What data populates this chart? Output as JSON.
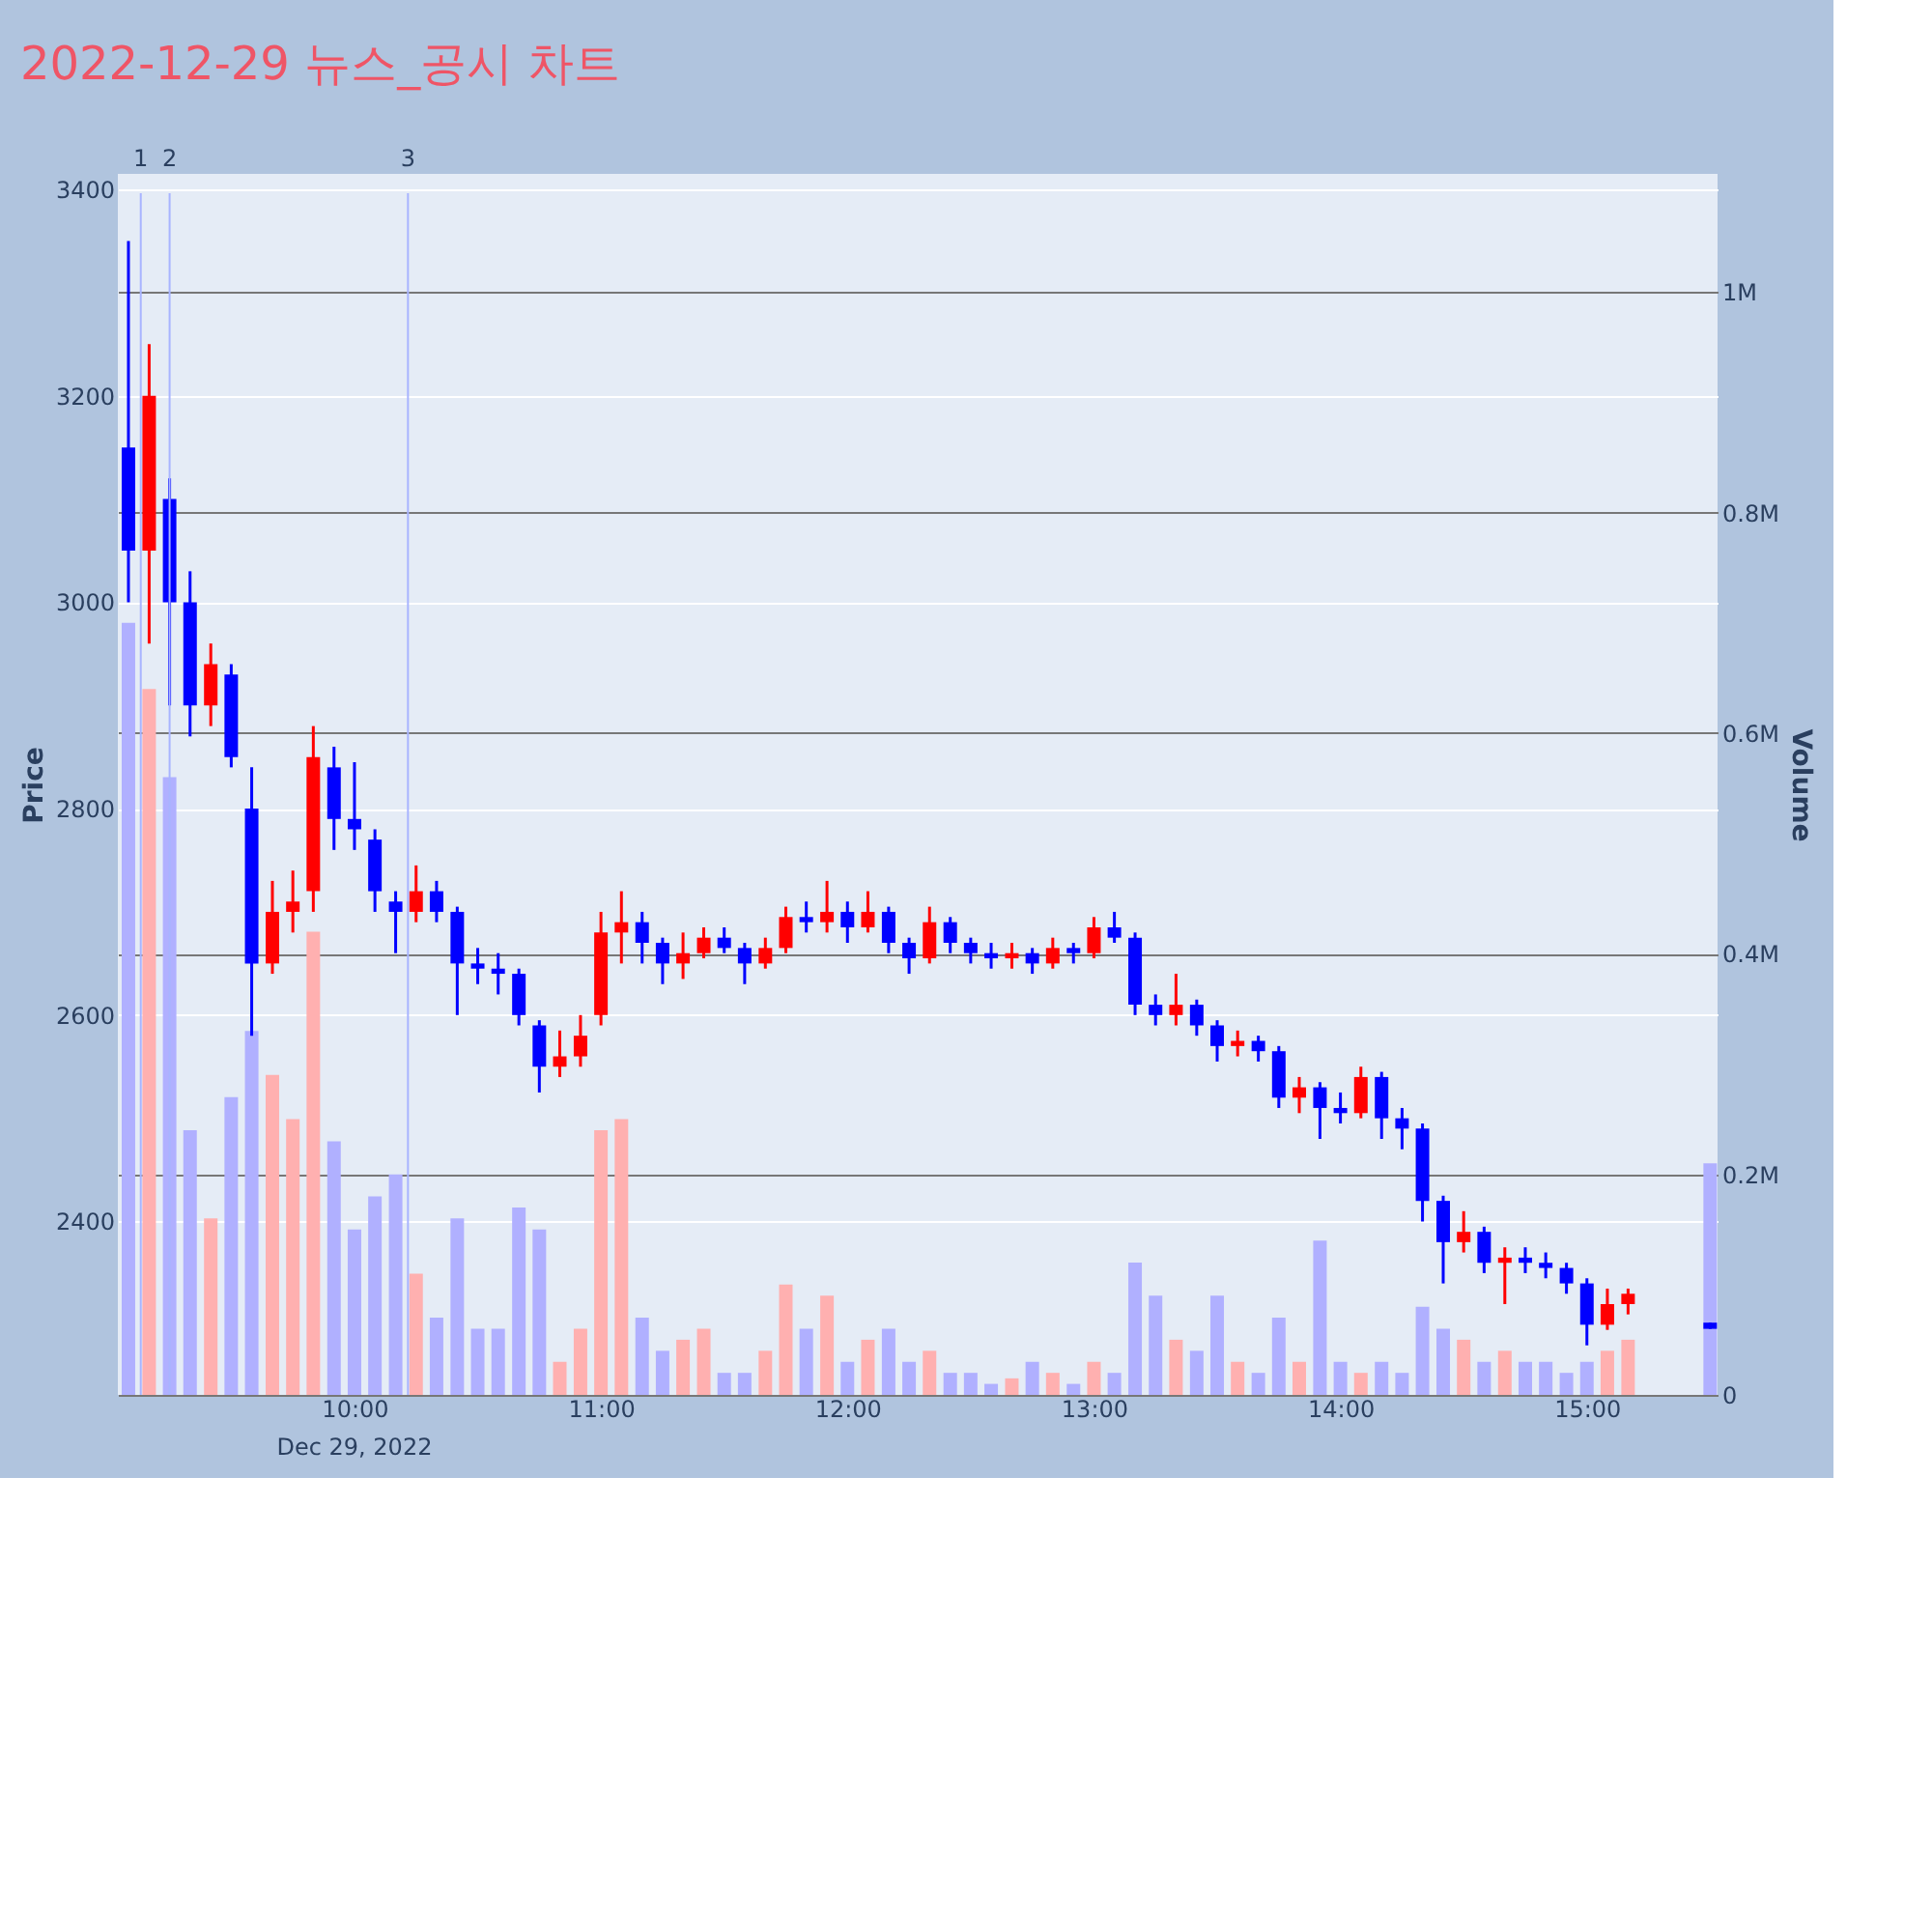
{
  "chart_data": {
    "type": "candlestick",
    "title": "2022-12-29 뉴스_공시 차트",
    "ylabel": "Price",
    "y2label": "Volume",
    "annotations": [
      "Dec 29, 2022",
      "1",
      "2",
      "3"
    ],
    "x": [
      9.083,
      9.167,
      9.25,
      9.333,
      9.417,
      9.5,
      9.583,
      9.667,
      9.75,
      9.833,
      9.917,
      10,
      10.083,
      10.167,
      10.25,
      10.333,
      10.417,
      10.5,
      10.583,
      10.667,
      10.75,
      10.833,
      10.917,
      11,
      11.083,
      11.167,
      11.25,
      11.333,
      11.417,
      11.5,
      11.583,
      11.667,
      11.75,
      11.833,
      11.917,
      12,
      12.083,
      12.167,
      12.25,
      12.333,
      12.417,
      12.5,
      12.583,
      12.667,
      12.75,
      12.833,
      12.917,
      13,
      13.083,
      13.167,
      13.25,
      13.333,
      13.417,
      13.5,
      13.583,
      13.667,
      13.75,
      13.833,
      13.917,
      14,
      14.083,
      14.167,
      14.25,
      14.333,
      14.417,
      14.5,
      14.583,
      14.667,
      14.75,
      14.833,
      14.917,
      15,
      15.083,
      15.167,
      15.5
    ],
    "ohlc": [
      [
        3150,
        3350,
        3000,
        3050
      ],
      [
        3050,
        3250,
        2960,
        3200
      ],
      [
        3100,
        3120,
        2900,
        3000
      ],
      [
        3000,
        3030,
        2870,
        2900
      ],
      [
        2900,
        2960,
        2880,
        2940
      ],
      [
        2930,
        2940,
        2840,
        2850
      ],
      [
        2800,
        2840,
        2580,
        2650
      ],
      [
        2650,
        2730,
        2640,
        2700
      ],
      [
        2700,
        2740,
        2680,
        2710
      ],
      [
        2720,
        2880,
        2700,
        2850
      ],
      [
        2840,
        2860,
        2760,
        2790
      ],
      [
        2790,
        2845,
        2760,
        2780
      ],
      [
        2770,
        2780,
        2700,
        2720
      ],
      [
        2710,
        2720,
        2660,
        2700
      ],
      [
        2700,
        2745,
        2690,
        2720
      ],
      [
        2720,
        2730,
        2690,
        2700
      ],
      [
        2700,
        2705,
        2600,
        2650
      ],
      [
        2650,
        2665,
        2630,
        2645
      ],
      [
        2645,
        2660,
        2620,
        2640
      ],
      [
        2640,
        2645,
        2590,
        2600
      ],
      [
        2590,
        2595,
        2525,
        2550
      ],
      [
        2550,
        2585,
        2540,
        2560
      ],
      [
        2560,
        2600,
        2550,
        2580
      ],
      [
        2600,
        2700,
        2590,
        2680
      ],
      [
        2680,
        2720,
        2650,
        2690
      ],
      [
        2690,
        2700,
        2650,
        2670
      ],
      [
        2670,
        2675,
        2630,
        2650
      ],
      [
        2650,
        2680,
        2635,
        2660
      ],
      [
        2660,
        2685,
        2655,
        2675
      ],
      [
        2675,
        2685,
        2660,
        2665
      ],
      [
        2665,
        2670,
        2630,
        2650
      ],
      [
        2650,
        2675,
        2645,
        2665
      ],
      [
        2665,
        2705,
        2660,
        2695
      ],
      [
        2695,
        2710,
        2680,
        2690
      ],
      [
        2690,
        2730,
        2680,
        2700
      ],
      [
        2700,
        2710,
        2670,
        2685
      ],
      [
        2685,
        2720,
        2680,
        2700
      ],
      [
        2700,
        2705,
        2660,
        2670
      ],
      [
        2670,
        2675,
        2640,
        2655
      ],
      [
        2655,
        2705,
        2650,
        2690
      ],
      [
        2690,
        2695,
        2660,
        2670
      ],
      [
        2670,
        2675,
        2650,
        2660
      ],
      [
        2660,
        2670,
        2645,
        2655
      ],
      [
        2655,
        2670,
        2645,
        2660
      ],
      [
        2660,
        2665,
        2640,
        2650
      ],
      [
        2650,
        2675,
        2645,
        2665
      ],
      [
        2665,
        2670,
        2650,
        2660
      ],
      [
        2660,
        2695,
        2655,
        2685
      ],
      [
        2685,
        2700,
        2670,
        2675
      ],
      [
        2675,
        2680,
        2600,
        2610
      ],
      [
        2610,
        2620,
        2590,
        2600
      ],
      [
        2600,
        2640,
        2590,
        2610
      ],
      [
        2610,
        2615,
        2580,
        2590
      ],
      [
        2590,
        2595,
        2555,
        2570
      ],
      [
        2570,
        2585,
        2560,
        2575
      ],
      [
        2575,
        2580,
        2555,
        2565
      ],
      [
        2565,
        2570,
        2510,
        2520
      ],
      [
        2520,
        2540,
        2505,
        2530
      ],
      [
        2530,
        2535,
        2480,
        2510
      ],
      [
        2510,
        2525,
        2495,
        2505
      ],
      [
        2505,
        2550,
        2500,
        2540
      ],
      [
        2540,
        2545,
        2480,
        2500
      ],
      [
        2500,
        2510,
        2470,
        2490
      ],
      [
        2490,
        2495,
        2400,
        2420
      ],
      [
        2420,
        2425,
        2340,
        2380
      ],
      [
        2380,
        2410,
        2370,
        2390
      ],
      [
        2390,
        2395,
        2350,
        2360
      ],
      [
        2360,
        2375,
        2320,
        2365
      ],
      [
        2365,
        2375,
        2350,
        2360
      ],
      [
        2360,
        2370,
        2345,
        2355
      ],
      [
        2355,
        2360,
        2330,
        2340
      ],
      [
        2340,
        2345,
        2280,
        2300
      ],
      [
        2300,
        2335,
        2295,
        2320
      ],
      [
        2320,
        2335,
        2310,
        2330
      ],
      [
        2302,
        2302,
        2296,
        2296
      ]
    ],
    "colors": [
      "#0000ff",
      "#ff0000",
      "#0000ff",
      "#0000ff",
      "#ff0000",
      "#0000ff",
      "#0000ff",
      "#ff0000",
      "#ff0000",
      "#ff0000",
      "#0000ff",
      "#0000ff",
      "#0000ff",
      "#0000ff",
      "#ff0000",
      "#0000ff",
      "#0000ff",
      "#0000ff",
      "#0000ff",
      "#0000ff",
      "#0000ff",
      "#ff0000",
      "#ff0000",
      "#ff0000",
      "#ff0000",
      "#0000ff",
      "#0000ff",
      "#ff0000",
      "#ff0000",
      "#0000ff",
      "#0000ff",
      "#ff0000",
      "#ff0000",
      "#0000ff",
      "#ff0000",
      "#0000ff",
      "#ff0000",
      "#0000ff",
      "#0000ff",
      "#ff0000",
      "#0000ff",
      "#0000ff",
      "#0000ff",
      "#ff0000",
      "#0000ff",
      "#ff0000",
      "#0000ff",
      "#ff0000",
      "#0000ff",
      "#0000ff",
      "#0000ff",
      "#ff0000",
      "#0000ff",
      "#0000ff",
      "#ff0000",
      "#0000ff",
      "#0000ff",
      "#ff0000",
      "#0000ff",
      "#0000ff",
      "#ff0000",
      "#0000ff",
      "#0000ff",
      "#0000ff",
      "#0000ff",
      "#ff0000",
      "#0000ff",
      "#ff0000",
      "#0000ff",
      "#0000ff",
      "#0000ff",
      "#0000ff",
      "#ff0000",
      "#ff0000",
      "#0000ff"
    ],
    "series": [
      {
        "type": "bar",
        "axis": "y2",
        "values": [
          700000,
          640000,
          560000,
          240000,
          160000,
          270000,
          330000,
          290000,
          250000,
          420000,
          230000,
          150000,
          180000,
          200000,
          110000,
          70000,
          160000,
          60000,
          60000,
          170000,
          150000,
          30000,
          60000,
          240000,
          250000,
          70000,
          40000,
          50000,
          60000,
          20000,
          20000,
          40000,
          100000,
          60000,
          90000,
          30000,
          50000,
          60000,
          30000,
          40000,
          20000,
          20000,
          10000,
          15000,
          30000,
          20000,
          10000,
          30000,
          20000,
          120000,
          90000,
          50000,
          40000,
          90000,
          30000,
          20000,
          70000,
          30000,
          140000,
          30000,
          20000,
          30000,
          20000,
          80000,
          60000,
          50000,
          30000,
          40000,
          30000,
          30000,
          20000,
          30000,
          40000,
          50000,
          210000
        ],
        "colors": [
          "#b0b0ff",
          "#ffb0b0",
          "#b0b0ff",
          "#b0b0ff",
          "#ffb0b0",
          "#b0b0ff",
          "#b0b0ff",
          "#ffb0b0",
          "#ffb0b0",
          "#ffb0b0",
          "#b0b0ff",
          "#b0b0ff",
          "#b0b0ff",
          "#b0b0ff",
          "#ffb0b0",
          "#b0b0ff",
          "#b0b0ff",
          "#b0b0ff",
          "#b0b0ff",
          "#b0b0ff",
          "#b0b0ff",
          "#ffb0b0",
          "#ffb0b0",
          "#ffb0b0",
          "#ffb0b0",
          "#b0b0ff",
          "#b0b0ff",
          "#ffb0b0",
          "#ffb0b0",
          "#b0b0ff",
          "#b0b0ff",
          "#ffb0b0",
          "#ffb0b0",
          "#b0b0ff",
          "#ffb0b0",
          "#b0b0ff",
          "#ffb0b0",
          "#b0b0ff",
          "#b0b0ff",
          "#ffb0b0",
          "#b0b0ff",
          "#b0b0ff",
          "#b0b0ff",
          "#ffb0b0",
          "#b0b0ff",
          "#ffb0b0",
          "#b0b0ff",
          "#ffb0b0",
          "#b0b0ff",
          "#b0b0ff",
          "#b0b0ff",
          "#ffb0b0",
          "#b0b0ff",
          "#b0b0ff",
          "#ffb0b0",
          "#b0b0ff",
          "#b0b0ff",
          "#ffb0b0",
          "#b0b0ff",
          "#b0b0ff",
          "#ffb0b0",
          "#b0b0ff",
          "#b0b0ff",
          "#b0b0ff",
          "#b0b0ff",
          "#ffb0b0",
          "#b0b0ff",
          "#ffb0b0",
          "#b0b0ff",
          "#b0b0ff",
          "#b0b0ff",
          "#b0b0ff",
          "#ffb0b0",
          "#ffb0b0",
          "#b0b0ff"
        ]
      }
    ],
    "xlim": [
      9.04,
      15.53
    ],
    "xticks": [
      {
        "value": 10,
        "label": "10:00"
      },
      {
        "value": 11,
        "label": "11:00"
      },
      {
        "value": 12,
        "label": "12:00"
      },
      {
        "value": 13,
        "label": "13:00"
      },
      {
        "value": 14,
        "label": "14:00"
      },
      {
        "value": 15,
        "label": "15:00"
      }
    ],
    "ylim": [
      2232,
      3415
    ],
    "yticks": [
      2400,
      2600,
      2800,
      3000,
      3200,
      3400
    ],
    "y2lim": [
      0,
      1107000
    ],
    "y2ticks": [
      0,
      {
        "value": 200000,
        "label": "0.2M"
      },
      {
        "value": 400000,
        "label": "0.4M"
      },
      {
        "value": 600000,
        "label": "0.6M"
      },
      {
        "value": 800000,
        "label": "0.8M"
      },
      {
        "value": 1000000,
        "label": "1M"
      }
    ],
    "ref_lines": [
      {
        "axis": "x",
        "value": 9.133,
        "color": "#a8b4ff"
      },
      {
        "axis": "x",
        "value": 9.25,
        "color": "#a8b4ff"
      },
      {
        "axis": "x",
        "value": 10.217,
        "color": "#a8b4ff"
      }
    ],
    "grid": "y"
  }
}
